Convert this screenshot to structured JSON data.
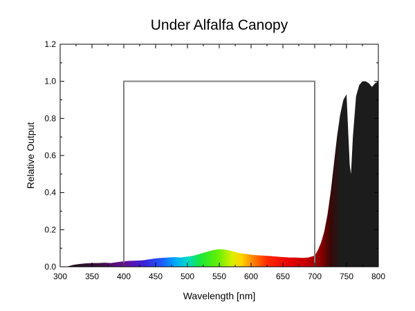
{
  "chart_data": {
    "type": "area",
    "title": "Under Alfalfa Canopy",
    "xlabel": "Wavelength [nm]",
    "ylabel": "Relative Output",
    "xlim": [
      300,
      800
    ],
    "ylim": [
      0,
      1.2
    ],
    "x_ticks": [
      "300",
      "350",
      "400",
      "450",
      "500",
      "550",
      "600",
      "650",
      "700",
      "750",
      "800"
    ],
    "y_ticks": [
      "0.0",
      "0.2",
      "0.4",
      "0.6",
      "0.8",
      "1.0",
      "1.2"
    ],
    "grid": false,
    "series": [
      {
        "values_x": [
          300,
          310,
          320,
          330,
          340,
          350,
          360,
          370,
          380,
          390,
          400,
          410,
          420,
          430,
          440,
          450,
          460,
          470,
          480,
          490,
          500,
          510,
          520,
          530,
          540,
          550,
          560,
          570,
          580,
          590,
          600,
          610,
          620,
          630,
          640,
          650,
          660,
          670,
          680,
          690,
          700,
          705,
          710,
          715,
          720,
          725,
          730,
          735,
          740,
          745,
          750,
          755,
          757,
          760,
          765,
          770,
          775,
          780,
          785,
          790,
          795,
          800
        ],
        "values_y": [
          0.0,
          0.0,
          0.01,
          0.015,
          0.018,
          0.02,
          0.02,
          0.022,
          0.02,
          0.025,
          0.03,
          0.032,
          0.033,
          0.035,
          0.04,
          0.045,
          0.048,
          0.05,
          0.052,
          0.05,
          0.055,
          0.06,
          0.07,
          0.08,
          0.09,
          0.095,
          0.092,
          0.085,
          0.075,
          0.07,
          0.065,
          0.062,
          0.06,
          0.058,
          0.055,
          0.052,
          0.05,
          0.05,
          0.048,
          0.05,
          0.06,
          0.09,
          0.13,
          0.19,
          0.28,
          0.4,
          0.55,
          0.7,
          0.82,
          0.9,
          0.93,
          0.55,
          0.5,
          0.7,
          0.92,
          0.98,
          1.0,
          1.0,
          0.99,
          0.97,
          0.99,
          1.0
        ]
      }
    ],
    "box_outline": {
      "x_start": 400,
      "x_end": 700,
      "y": 1.0
    },
    "colors": {
      "outline": "#808080",
      "infrared_fill": "#1c1c1c"
    }
  }
}
